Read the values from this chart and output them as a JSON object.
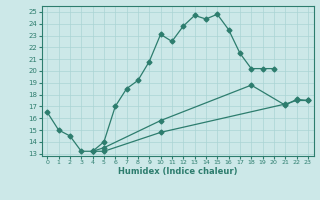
{
  "xlabel": "Humidex (Indice chaleur)",
  "bg_color": "#cce8e8",
  "grid_color": "#aad4d4",
  "line_color": "#2d7d6e",
  "xticks": [
    0,
    1,
    2,
    3,
    4,
    5,
    6,
    7,
    8,
    9,
    10,
    11,
    12,
    13,
    14,
    15,
    16,
    17,
    18,
    19,
    20,
    21,
    22,
    23
  ],
  "yticks": [
    13,
    14,
    15,
    16,
    17,
    18,
    19,
    20,
    21,
    22,
    23,
    24,
    25
  ],
  "xlim": [
    -0.5,
    23.5
  ],
  "ylim": [
    12.8,
    25.5
  ],
  "line1_x": [
    0,
    1,
    2,
    3,
    4,
    5,
    6,
    7,
    8,
    9,
    10,
    11,
    12,
    13,
    14,
    15,
    16,
    17,
    18,
    19,
    20
  ],
  "line1_y": [
    16.5,
    15.0,
    14.5,
    13.2,
    13.2,
    14.0,
    17.0,
    18.5,
    19.2,
    20.8,
    23.1,
    22.5,
    23.8,
    24.7,
    24.4,
    24.8,
    23.5,
    21.5,
    20.2,
    20.2,
    20.2
  ],
  "line2_x": [
    4,
    5,
    10,
    18,
    21,
    22,
    23
  ],
  "line2_y": [
    13.2,
    13.5,
    15.8,
    18.8,
    17.1,
    17.6,
    17.5
  ],
  "line3_x": [
    4,
    5,
    10,
    21,
    22,
    23
  ],
  "line3_y": [
    13.2,
    13.2,
    14.8,
    17.2,
    17.5,
    17.5
  ]
}
